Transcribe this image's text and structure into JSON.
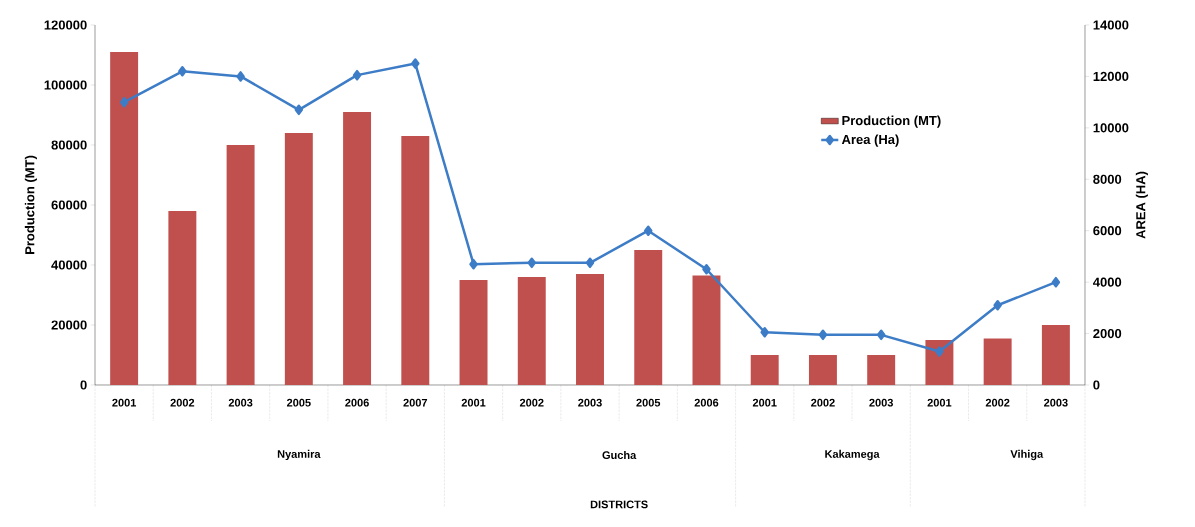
{
  "chart_data": {
    "type": "bar",
    "ylabel": "Production (MT)",
    "y2label": "AREA (HA)",
    "categories": [
      "2001",
      "2002",
      "2003",
      "2005",
      "2006",
      "2007",
      "2001",
      "2002",
      "2003",
      "2005",
      "2006",
      "2001",
      "2002",
      "2003",
      "2001",
      "2002",
      "2003"
    ],
    "series": [
      {
        "name": "Production (MT)",
        "color": "#c0504d",
        "values": [
          111000,
          58000,
          80000,
          84000,
          91000,
          83000,
          35000,
          36000,
          37000,
          45000,
          36500,
          10000,
          10000,
          10000,
          15000,
          15500,
          20000
        ]
      },
      {
        "name": "Area (Ha)",
        "type": "line",
        "axis": "y2",
        "marker": "diamond",
        "color": "#3d7cc6",
        "values": [
          11000,
          12200,
          12000,
          10700,
          12050,
          12500,
          4700,
          4750,
          4750,
          6000,
          4500,
          2050,
          1950,
          1950,
          1300,
          3100,
          4000
        ]
      }
    ],
    "ylim": [
      0,
      120000
    ],
    "yticks": [
      0,
      20000,
      40000,
      60000,
      80000,
      100000,
      120000
    ],
    "y2lim": [
      0,
      14000
    ],
    "y2ticks": [
      0,
      2000,
      4000,
      6000,
      8000,
      10000,
      12000,
      14000
    ],
    "legend": "top right",
    "annotations": [
      "Nyamira",
      "Gucha",
      "Kakamega",
      "Vihiga",
      "DISTRICTS"
    ]
  }
}
